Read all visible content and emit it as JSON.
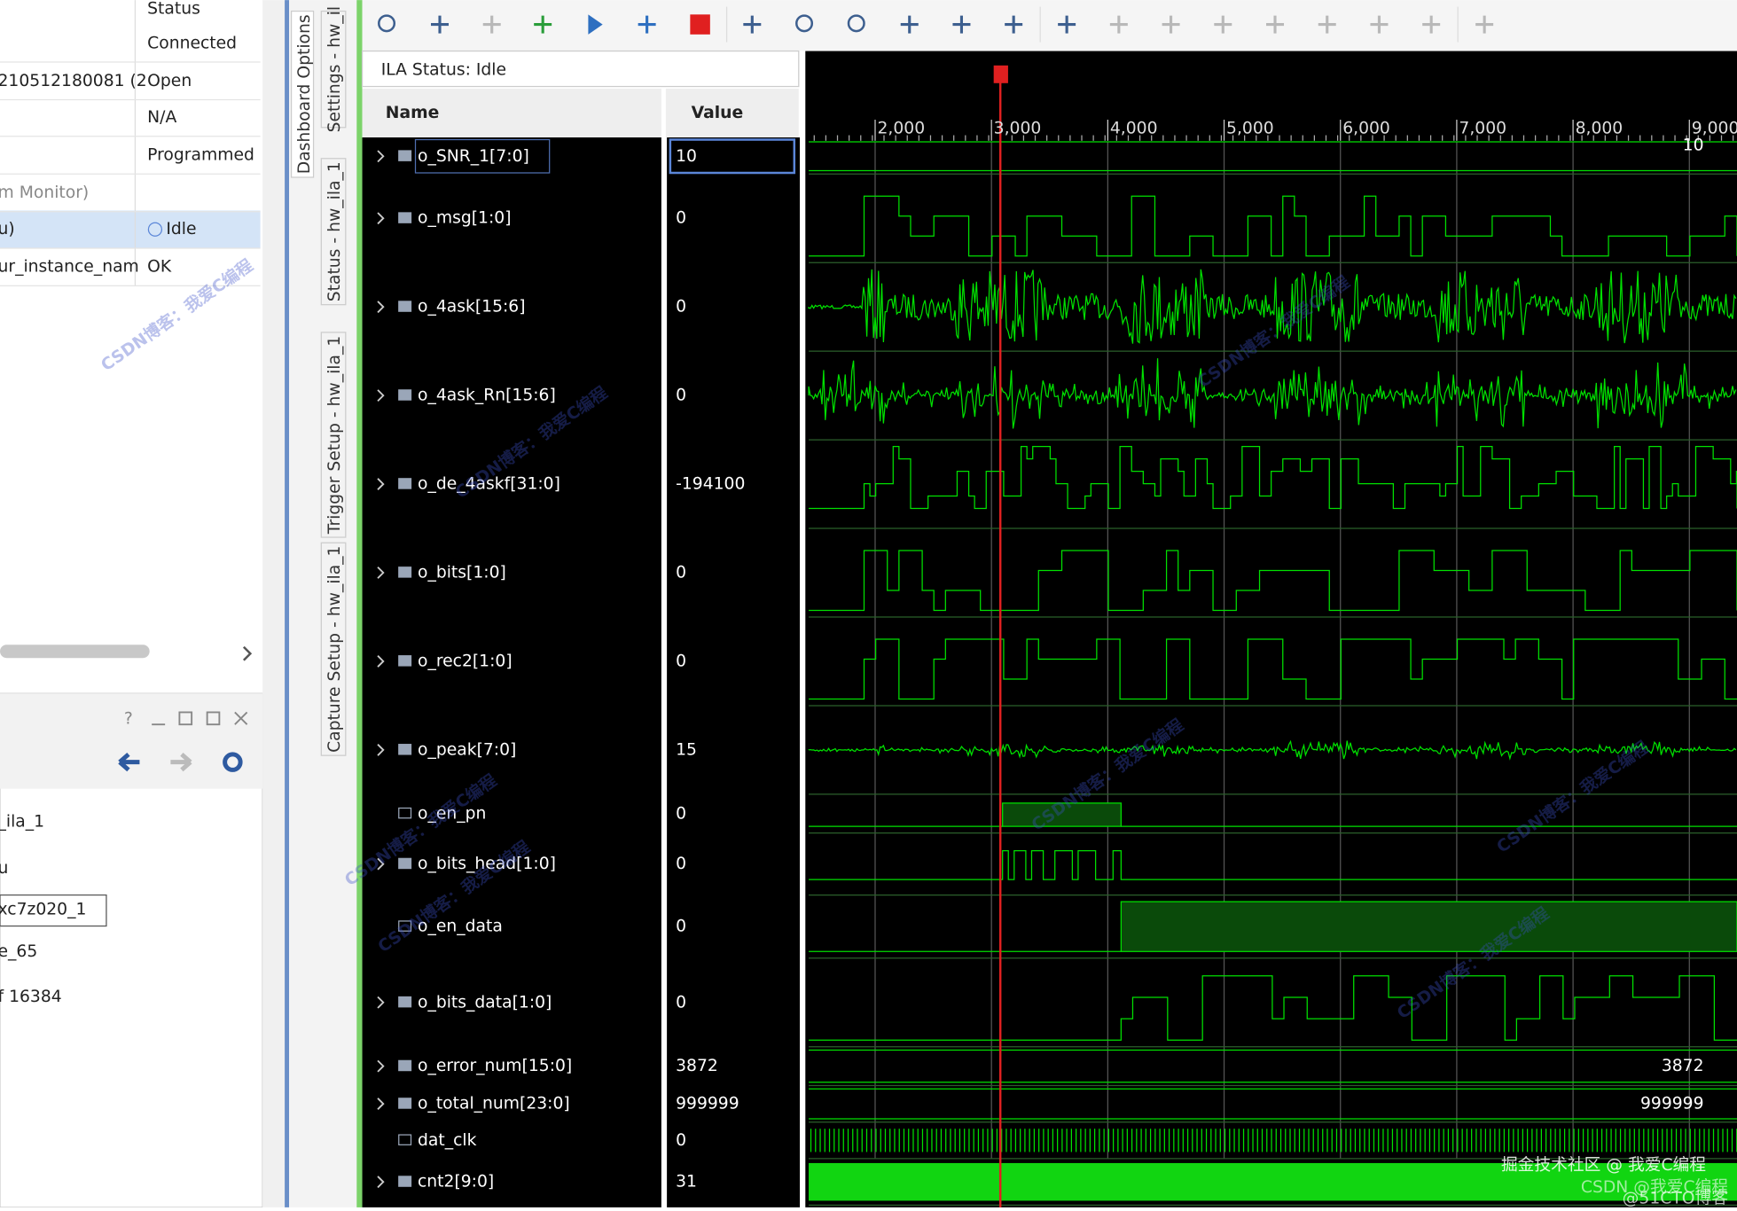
{
  "left_panel": {
    "header": "Status",
    "rows": [
      {
        "status": "Connected"
      },
      {
        "name": "210512180081 (2",
        "status": "Open"
      },
      {
        "status": "N/A"
      },
      {
        "status": "Programmed"
      },
      {
        "name": "m Monitor)"
      },
      {
        "name": "u)",
        "status": "Idle"
      },
      {
        "name": "ur_instance_nam",
        "status": "OK"
      }
    ]
  },
  "lower_panel": {
    "items": [
      "_ila_1",
      "u",
      "xc7z020_1",
      "e_65",
      "f 16384"
    ]
  },
  "tabs": [
    "Dashboard Options",
    "Settings - hw_il",
    "Status - hw_ila_1",
    "Trigger Setup - hw_ila_1",
    "Capture Setup - hw_ila_1"
  ],
  "ila_status": "ILA Status:  Idle",
  "columns": {
    "name": "Name",
    "value": "Value"
  },
  "timeline": [
    "2,000",
    "3,000",
    "4,000",
    "5,000",
    "6,000",
    "7,000",
    "8,000",
    "9,000"
  ],
  "signals": [
    {
      "name": "o_SNR_1[7:0]",
      "value": "10",
      "wave_label": "10"
    },
    {
      "name": "o_msg[1:0]",
      "value": "0"
    },
    {
      "name": "o_4ask[15:6]",
      "value": "0"
    },
    {
      "name": "o_4ask_Rn[15:6]",
      "value": "0"
    },
    {
      "name": "o_de_4askf[31:0]",
      "value": "-194100"
    },
    {
      "name": "o_bits[1:0]",
      "value": "0"
    },
    {
      "name": "o_rec2[1:0]",
      "value": "0"
    },
    {
      "name": "o_peak[7:0]",
      "value": "15"
    },
    {
      "name": "o_en_pn",
      "value": "0"
    },
    {
      "name": "o_bits_head[1:0]",
      "value": "0"
    },
    {
      "name": "o_en_data",
      "value": "0"
    },
    {
      "name": "o_bits_data[1:0]",
      "value": "0"
    },
    {
      "name": "o_error_num[15:0]",
      "value": "3872",
      "wave_label": "3872"
    },
    {
      "name": "o_total_num[23:0]",
      "value": "999999",
      "wave_label": "999999"
    },
    {
      "name": "dat_clk",
      "value": "0"
    },
    {
      "name": "cnt2[9:0]",
      "value": "31"
    }
  ],
  "watermark": "CSDN博客：我爱C编程",
  "footer": [
    "掘金技术社区 @ 我爱C编程",
    "CSDN @我爱C编程",
    "@51CTO博客"
  ]
}
